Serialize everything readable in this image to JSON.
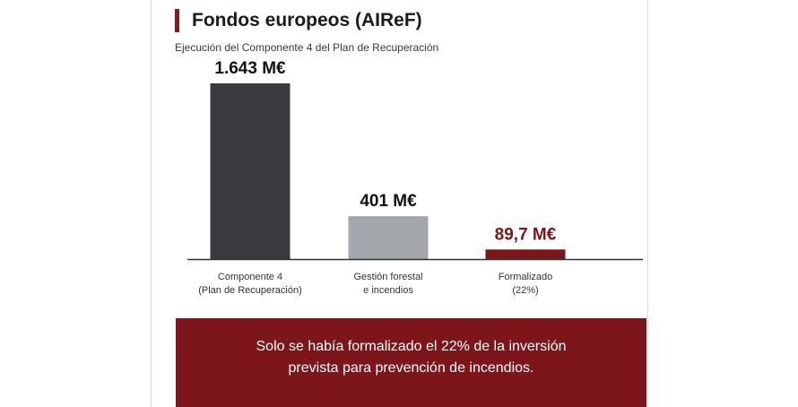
{
  "header": {
    "title": "Fondos europeos (AIReF)",
    "subtitle": "Ejecución del Componente 4 del Plan de Recuperación"
  },
  "chart_data": {
    "type": "bar",
    "categories": [
      [
        "Componente 4",
        "(Plan de Recuperación)"
      ],
      [
        "Gestión forestal",
        "e incendios"
      ],
      [
        "Formalizado",
        "(22%)"
      ]
    ],
    "values": [
      1643,
      401,
      89.7
    ],
    "value_labels": [
      "1.643 M€",
      "401 M€",
      "89,7 M€"
    ],
    "bar_colors": [
      "#3a3b3e",
      "#a3a6aa",
      "#7c161a"
    ],
    "label_colors": [
      "#111111",
      "#111111",
      "#7c161a"
    ],
    "unit": "M€",
    "title": "Ejecución del Componente 4 del Plan de Recuperación",
    "ylim": [
      0,
      1643
    ],
    "grid": false,
    "legend": "none"
  },
  "note": {
    "text": "Solo se había formalizado el 22% de la inversión prevista para prevención de incendios."
  },
  "colors": {
    "accent": "#8a1a1f",
    "note_background": "#7c161a",
    "axis": "#333333"
  }
}
